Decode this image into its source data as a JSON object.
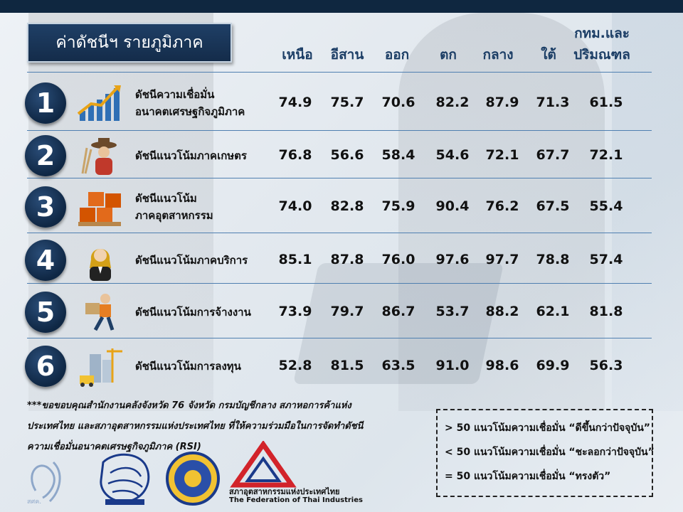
{
  "title": "ค่าดัชนีฯ รายภูมิภาค",
  "columns": [
    {
      "label": "เหนือ"
    },
    {
      "label": "อีสาน"
    },
    {
      "label": "ออก"
    },
    {
      "label": "ตก"
    },
    {
      "label": "กลาง"
    },
    {
      "label": "ใต้"
    },
    {
      "line1": "กทม.และ",
      "line2": "ปริมณฑล"
    }
  ],
  "rows": [
    {
      "num": "1",
      "icon": "growth-chart-icon",
      "line1": "ดัชนีความเชื่อมั่น",
      "line2": "อนาคตเศรษฐกิจภูมิภาค",
      "values": [
        "74.9",
        "75.7",
        "70.6",
        "82.2",
        "87.9",
        "71.3",
        "61.5"
      ]
    },
    {
      "num": "2",
      "icon": "farmer-icon",
      "line1": "ดัชนีแนวโน้มภาคเกษตร",
      "line2": "",
      "values": [
        "76.8",
        "56.6",
        "58.4",
        "54.6",
        "72.1",
        "67.7",
        "72.1"
      ]
    },
    {
      "num": "3",
      "icon": "boxes-icon",
      "line1": "ดัชนีแนวโน้ม",
      "line2": "ภาคอุตสาหกรรม",
      "values": [
        "74.0",
        "82.8",
        "75.9",
        "90.4",
        "76.2",
        "67.5",
        "55.4"
      ]
    },
    {
      "num": "4",
      "icon": "waiter-icon",
      "line1": "ดัชนีแนวโน้มภาคบริการ",
      "line2": "",
      "values": [
        "85.1",
        "87.8",
        "76.0",
        "97.6",
        "97.7",
        "78.8",
        "57.4"
      ]
    },
    {
      "num": "5",
      "icon": "delivery-worker-icon",
      "line1": "ดัชนีแนวโน้มการจ้างงาน",
      "line2": "",
      "values": [
        "73.9",
        "79.7",
        "86.7",
        "53.7",
        "88.2",
        "62.1",
        "81.8"
      ]
    },
    {
      "num": "6",
      "icon": "construction-icon",
      "line1": "ดัชนีแนวโน้มการลงทุน",
      "line2": "",
      "values": [
        "52.8",
        "81.5",
        "63.5",
        "91.0",
        "98.6",
        "69.9",
        "56.3"
      ]
    }
  ],
  "credit": {
    "line1": "***ขอขอบคุณสำนักงานคลังจังหวัด 76 จังหวัด กรมบัญชีกลาง สภาหอการค้าแห่ง",
    "line2": "ประเทศไทย และสภาอุตสาหกรรมแห่งประเทศไทย ที่ให้ความร่วมมือในการจัดทำดัชนี",
    "line3": "ความเชื่อมั่นอนาคตเศรษฐกิจภูมิภาค (RSI)"
  },
  "legend": [
    "> 50 แนวโน้มความเชื่อมั่น “ดีขึ้นกว่าปัจจุบัน”",
    "< 50 แนวโน้มความเชื่อมั่น “ชะลอกว่าปัจจุบัน”",
    "= 50 แนวโน้มความเชื่อมั่น “ทรงตัว”"
  ],
  "logos": {
    "fti_th": "สภาอุตสาหกรรมแห่งประเทศไทย",
    "fti_en": "The Federation of Thai Industries",
    "spk": "สศค."
  },
  "colors": {
    "navy": "#142c4a",
    "heading_blue": "#1c3e66",
    "fti_red": "#d2232a"
  }
}
